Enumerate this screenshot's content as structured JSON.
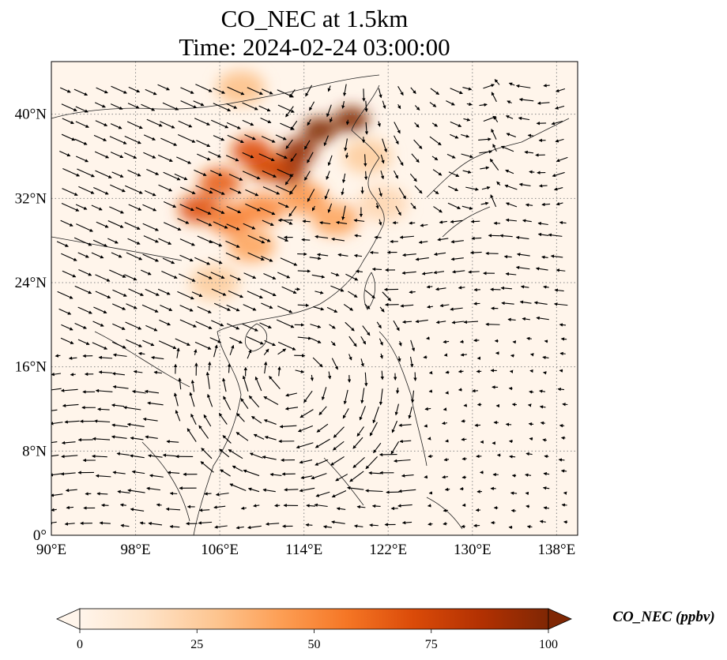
{
  "title": {
    "line1": "CO_NEC at 1.5km",
    "line2": "Time: 2024-02-24 03:00:00"
  },
  "map": {
    "lon_range": [
      90,
      140
    ],
    "lat_range": [
      0,
      45
    ],
    "lon_ticks": [
      {
        "value": 90,
        "label": "90°E"
      },
      {
        "value": 98,
        "label": "98°E"
      },
      {
        "value": 106,
        "label": "106°E"
      },
      {
        "value": 114,
        "label": "114°E"
      },
      {
        "value": 122,
        "label": "122°E"
      },
      {
        "value": 130,
        "label": "130°E"
      },
      {
        "value": 138,
        "label": "138°E"
      }
    ],
    "lat_ticks": [
      {
        "value": 0,
        "label": "0°"
      },
      {
        "value": 8,
        "label": "8°N"
      },
      {
        "value": 16,
        "label": "16°N"
      },
      {
        "value": 24,
        "label": "24°N"
      },
      {
        "value": 32,
        "label": "32°N"
      },
      {
        "value": 40,
        "label": "40°N"
      }
    ],
    "gridlines": "dotted",
    "background_color": "#fff5eb",
    "wind_vectors": "black arrows",
    "plume": [
      {
        "lon": 118.5,
        "lat": 39.5,
        "value": 100
      },
      {
        "lon": 115.5,
        "lat": 38.5,
        "value": 100
      },
      {
        "lon": 113.5,
        "lat": 36.5,
        "value": 95
      },
      {
        "lon": 112.5,
        "lat": 34.5,
        "value": 90
      },
      {
        "lon": 110.5,
        "lat": 35.0,
        "value": 75
      },
      {
        "lon": 109.0,
        "lat": 36.5,
        "value": 70
      },
      {
        "lon": 106.0,
        "lat": 33.5,
        "value": 65
      },
      {
        "lon": 104.0,
        "lat": 31.0,
        "value": 70
      },
      {
        "lon": 107.0,
        "lat": 30.0,
        "value": 55
      },
      {
        "lon": 110.0,
        "lat": 31.0,
        "value": 50
      },
      {
        "lon": 114.0,
        "lat": 32.0,
        "value": 45
      },
      {
        "lon": 117.0,
        "lat": 30.0,
        "value": 40
      },
      {
        "lon": 109.0,
        "lat": 27.5,
        "value": 40
      },
      {
        "lon": 105.5,
        "lat": 24.0,
        "value": 25
      },
      {
        "lon": 108.0,
        "lat": 42.5,
        "value": 30
      },
      {
        "lon": 120.0,
        "lat": 36.0,
        "value": 25
      },
      {
        "lon": 121.5,
        "lat": 31.5,
        "value": 20
      }
    ]
  },
  "colorbar": {
    "label": "CO_NEC (ppbv)",
    "min": 0,
    "max": 100,
    "extend": "both",
    "ticks": [
      "0",
      "25",
      "50",
      "75",
      "100"
    ],
    "colors": [
      "#fff5eb",
      "#fee3c8",
      "#fdc590",
      "#fd9e54",
      "#f57625",
      "#db4b09",
      "#b13002",
      "#7f2704"
    ]
  }
}
